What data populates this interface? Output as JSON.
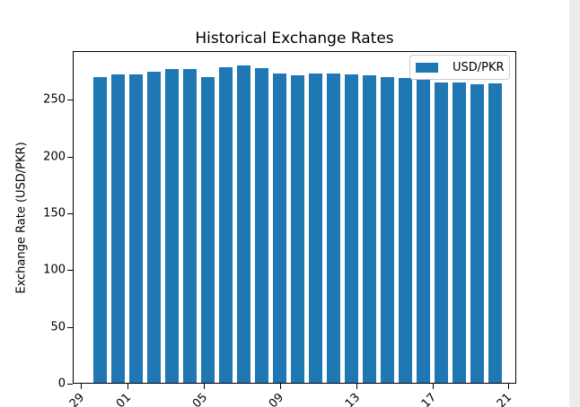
{
  "page": {
    "background_color": "#ffffff",
    "right_strip_color": "#ececec"
  },
  "chart_data": {
    "type": "bar",
    "title": "Historical Exchange Rates",
    "xlabel": "",
    "ylabel": "Exchange Rate (USD/PKR)",
    "legend": {
      "label": "USD/PKR",
      "position": "upper right"
    },
    "bar_color": "#1f77b4",
    "grid": false,
    "ylim": [
      0,
      293
    ],
    "y_ticks": [
      0,
      50,
      100,
      150,
      200,
      250
    ],
    "x_tick_labels": [
      "29",
      "01",
      "05",
      "09",
      "13",
      "17",
      "21"
    ],
    "x_tick_labels_clipped": true,
    "series": [
      {
        "name": "USD/PKR",
        "values": [
          269.5,
          271.4,
          271.4,
          274.0,
          276.7,
          276.7,
          269.5,
          277.9,
          279.8,
          277.1,
          272.7,
          270.8,
          272.7,
          272.7,
          271.4,
          270.6,
          269.5,
          268.7,
          266.8,
          264.8,
          264.2,
          262.7,
          263.4
        ]
      }
    ]
  }
}
